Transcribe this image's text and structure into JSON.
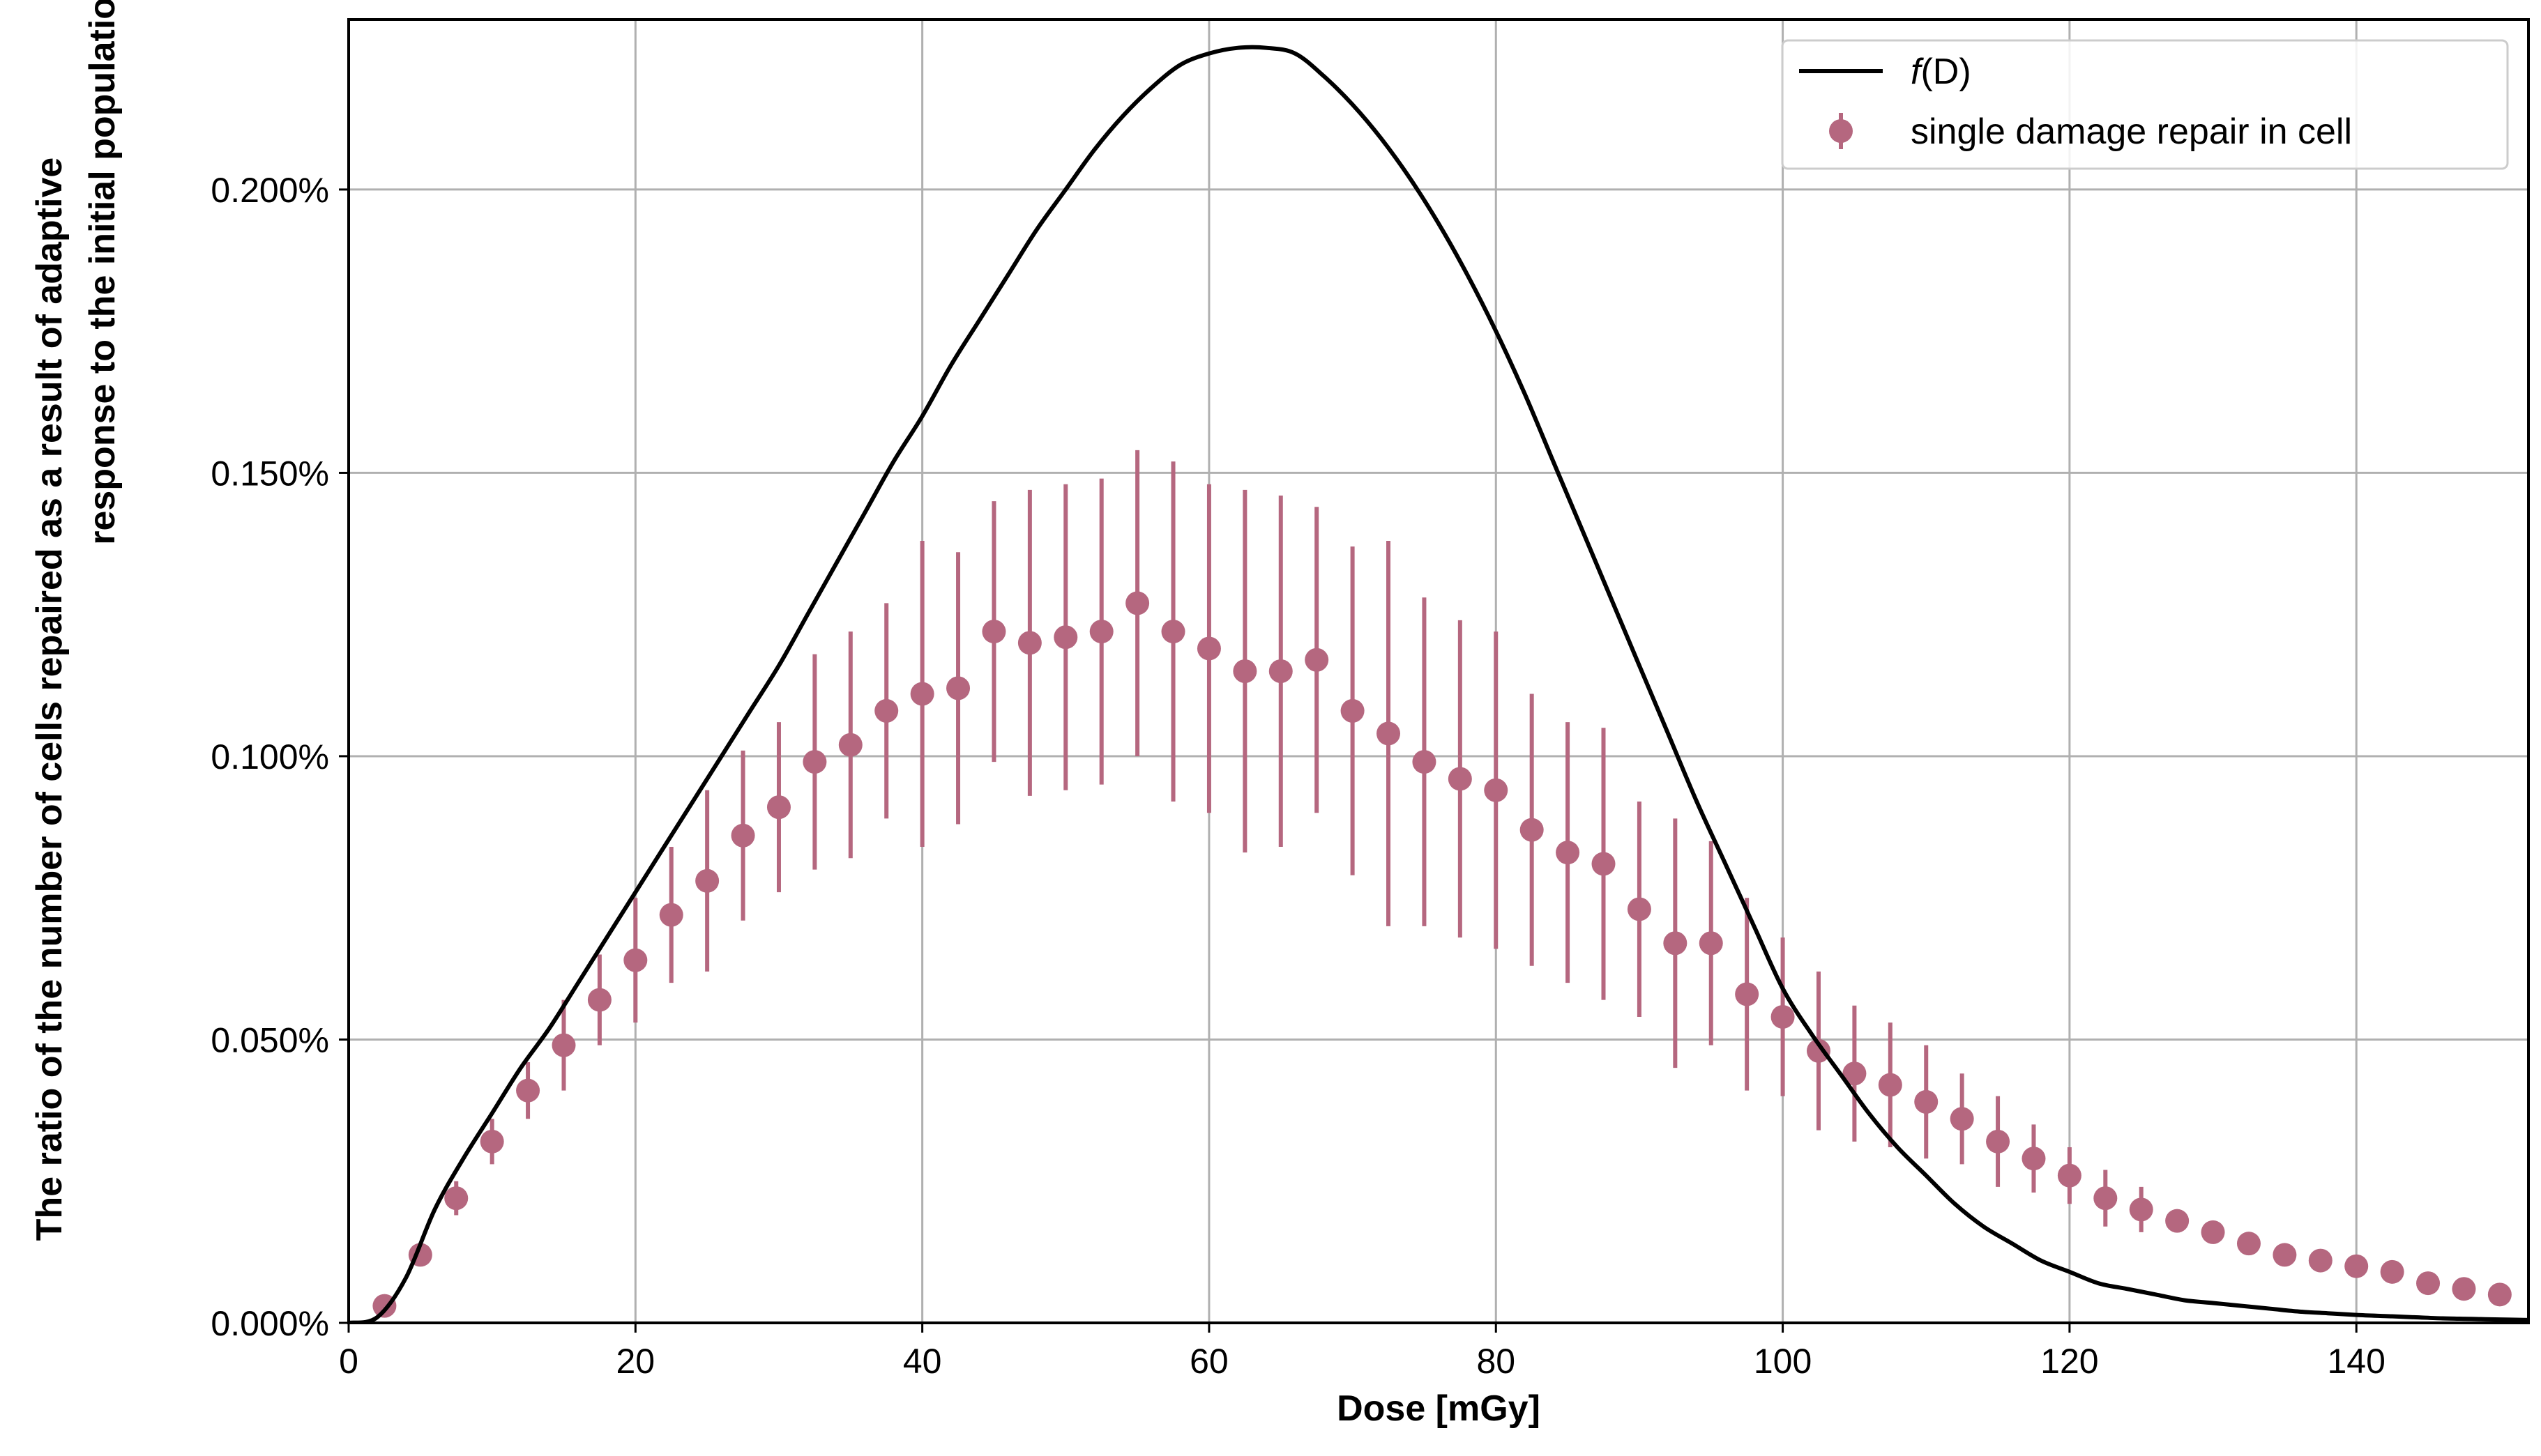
{
  "chart_data": {
    "type": "scatter",
    "title": "",
    "xlabel": "Dose [mGy]",
    "ylabel_line1": "The ratio of the number of cells repaired as a result of adaptive",
    "ylabel_line2": "response to the initial population",
    "xlim": [
      0,
      152
    ],
    "ylim": [
      0,
      0.0023
    ],
    "x_ticks": [
      0,
      20,
      40,
      60,
      80,
      100,
      120,
      140
    ],
    "y_ticks": [
      0,
      0.0005,
      0.001,
      0.0015,
      0.002
    ],
    "y_tick_labels": [
      "0.000%",
      "0.050%",
      "0.100%",
      "0.150%",
      "0.200%"
    ],
    "grid": true,
    "legend_position": "top-right",
    "series": [
      {
        "name": "f(D)",
        "legend_label_italic": "f",
        "legend_label_rest": "(D)",
        "kind": "line",
        "color": "#000000",
        "x": [
          0,
          2,
          4,
          6,
          8,
          10,
          12,
          14,
          16,
          18,
          20,
          22,
          24,
          26,
          28,
          30,
          32,
          34,
          36,
          38,
          40,
          42,
          44,
          46,
          48,
          50,
          52,
          54,
          56,
          58,
          60,
          62,
          64,
          66,
          68,
          70,
          72,
          74,
          76,
          78,
          80,
          82,
          84,
          86,
          88,
          90,
          92,
          94,
          96,
          98,
          100,
          102,
          104,
          106,
          108,
          110,
          112,
          114,
          116,
          118,
          120,
          122,
          124,
          126,
          128,
          130,
          132,
          134,
          136,
          138,
          140,
          142,
          144,
          146,
          148,
          150,
          152
        ],
        "y": [
          0.0,
          1e-05,
          8e-05,
          0.0002,
          0.00029,
          0.00037,
          0.00045,
          0.00052,
          0.0006,
          0.00068,
          0.00076,
          0.00084,
          0.00092,
          0.001,
          0.00108,
          0.00116,
          0.00125,
          0.00134,
          0.00143,
          0.00152,
          0.0016,
          0.00169,
          0.00177,
          0.00185,
          0.00193,
          0.002,
          0.00207,
          0.00213,
          0.00218,
          0.00222,
          0.00224,
          0.00225,
          0.00225,
          0.00224,
          0.0022,
          0.00215,
          0.00209,
          0.00202,
          0.00194,
          0.00185,
          0.00175,
          0.00164,
          0.00152,
          0.0014,
          0.00128,
          0.00116,
          0.00104,
          0.00092,
          0.00081,
          0.0007,
          0.00059,
          0.00051,
          0.00044,
          0.00037,
          0.00031,
          0.00026,
          0.00021,
          0.00017,
          0.00014,
          0.00011,
          9e-05,
          7e-05,
          6e-05,
          5e-05,
          4e-05,
          3.5e-05,
          3e-05,
          2.5e-05,
          2e-05,
          1.7e-05,
          1.4e-05,
          1.2e-05,
          1e-05,
          8e-06,
          7e-06,
          6e-06,
          5e-06
        ]
      },
      {
        "name": "single damage repair in cell",
        "kind": "errorbar",
        "color": "#b5677f",
        "x": [
          2.5,
          5,
          7.5,
          10,
          12.5,
          15,
          17.5,
          20,
          22.5,
          25,
          27.5,
          30,
          32.5,
          35,
          37.5,
          40,
          42.5,
          45,
          47.5,
          50,
          52.5,
          55,
          57.5,
          60,
          62.5,
          65,
          67.5,
          70,
          72.5,
          75,
          77.5,
          80,
          82.5,
          85,
          87.5,
          90,
          92.5,
          95,
          97.5,
          100,
          102.5,
          105,
          107.5,
          110,
          112.5,
          115,
          117.5,
          120,
          122.5,
          125,
          127.5,
          130,
          132.5,
          135,
          137.5,
          140,
          142.5,
          145,
          147.5,
          150
        ],
        "y": [
          3e-05,
          0.00012,
          0.00022,
          0.00032,
          0.00041,
          0.00049,
          0.00057,
          0.00064,
          0.00072,
          0.00078,
          0.00086,
          0.00091,
          0.00099,
          0.00102,
          0.00108,
          0.00111,
          0.00112,
          0.00122,
          0.0012,
          0.00121,
          0.00122,
          0.00127,
          0.00122,
          0.00119,
          0.00115,
          0.00115,
          0.00117,
          0.00108,
          0.00104,
          0.00099,
          0.00096,
          0.00094,
          0.00087,
          0.00083,
          0.00081,
          0.00073,
          0.00067,
          0.00067,
          0.00058,
          0.00054,
          0.00048,
          0.00044,
          0.00042,
          0.00039,
          0.00036,
          0.00032,
          0.00029,
          0.00026,
          0.00022,
          0.0002,
          0.00018,
          0.00016,
          0.00014,
          0.00012,
          0.00011,
          0.0001,
          9e-05,
          7e-05,
          6e-05,
          5e-05
        ],
        "err": [
          1e-05,
          1e-05,
          3e-05,
          4e-05,
          5e-05,
          8e-05,
          8e-05,
          0.00011,
          0.00012,
          0.00016,
          0.00015,
          0.00015,
          0.00019,
          0.0002,
          0.00019,
          0.00027,
          0.00024,
          0.00023,
          0.00027,
          0.00027,
          0.00027,
          0.00027,
          0.0003,
          0.00029,
          0.00032,
          0.00031,
          0.00027,
          0.00029,
          0.00034,
          0.00029,
          0.00028,
          0.00028,
          0.00024,
          0.00023,
          0.00024,
          0.00019,
          0.00022,
          0.00018,
          0.00017,
          0.00014,
          0.00014,
          0.00012,
          0.00011,
          0.0001,
          8e-05,
          8e-05,
          6e-05,
          5e-05,
          5e-05,
          4e-05,
          2e-05,
          2e-05,
          1e-05,
          1e-05,
          1e-05,
          1e-05,
          1e-05,
          1e-05,
          1e-05,
          1e-05
        ]
      }
    ]
  }
}
